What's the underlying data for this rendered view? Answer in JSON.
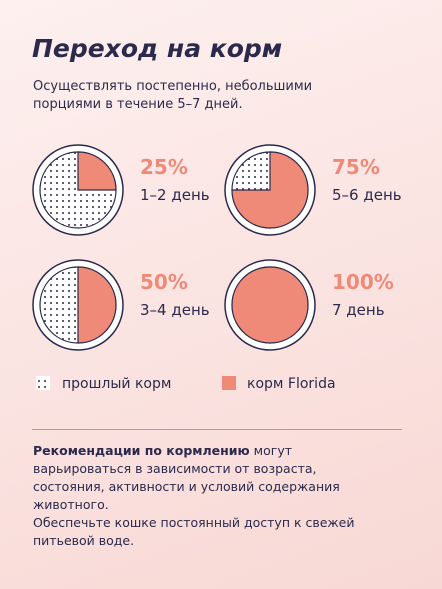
{
  "header": {
    "title": "Переход на корм",
    "subtitle": "Осуществлять постепенно, небольшими порциями в течение 5–7 дней."
  },
  "pies": [
    {
      "value": 25,
      "value_label": "25%",
      "label": "1–2 день"
    },
    {
      "value": 75,
      "value_label": "75%",
      "label": "5–6 день"
    },
    {
      "value": 50,
      "value_label": "50%",
      "label": "3–4 день"
    },
    {
      "value": 100,
      "value_label": "100%",
      "label": "7 день"
    }
  ],
  "legend": {
    "old": "прошлый корм",
    "new": "корм Florida"
  },
  "note": {
    "bold": "Рекомендации по кормлению",
    "text": " могут варьироваться в зависимости от возраста, состояния, активности и условий содержания животного.",
    "second": "Обеспечьте кошке постоянный доступ к свежей питьевой воде."
  }
}
